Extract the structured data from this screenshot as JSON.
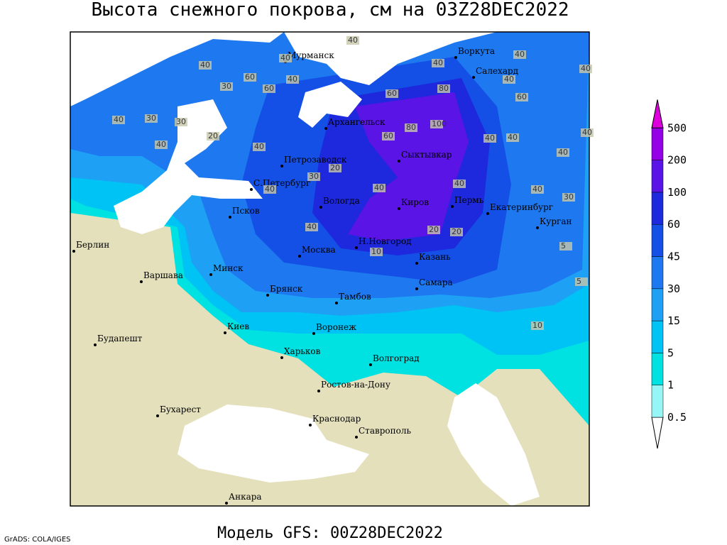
{
  "title": "Высота снежного покрова, см на 03Z28DEC2022",
  "footer": "Модель GFS: 00Z28DEC2022",
  "credit": "GrADS: COLA/IGES",
  "legend": {
    "levels": [
      0.5,
      1,
      5,
      15,
      30,
      45,
      60,
      100,
      200,
      500
    ],
    "band_colors": [
      "#ffffff",
      "#96f5f5",
      "#00e1e1",
      "#00c3f5",
      "#1ea0f5",
      "#1e78f0",
      "#1450e6",
      "#1e28dc",
      "#5a14e6",
      "#9600e6",
      "#dc00dc"
    ]
  },
  "cities": [
    "Мурманск",
    "Воркута",
    "Салехард",
    "Архангельск",
    "Сыктывкар",
    "Петрозаводск",
    "С.Петербург",
    "Вологда",
    "Киров",
    "Пермь",
    "Екатеринбург",
    "Курган",
    "Псков",
    "Берлин",
    "Н.Новгород",
    "Москва",
    "Казань",
    "Минск",
    "Варшава",
    "Самара",
    "Брянск",
    "Тамбов",
    "Воронеж",
    "Киев",
    "Будапешт",
    "Харьков",
    "Волгоград",
    "Ростов-на-Дону",
    "Бухарест",
    "Краснодар",
    "Ставрополь",
    "Анкара"
  ],
  "contour_labels": [
    40,
    40,
    40,
    40,
    60,
    60,
    30,
    40,
    40,
    40,
    40,
    60,
    80,
    60,
    100,
    80,
    60,
    40,
    40,
    40,
    40,
    20,
    30,
    30,
    40,
    40,
    40,
    20,
    30,
    40,
    40,
    40,
    20,
    20,
    10,
    5,
    10,
    5,
    40,
    30,
    40
  ]
}
